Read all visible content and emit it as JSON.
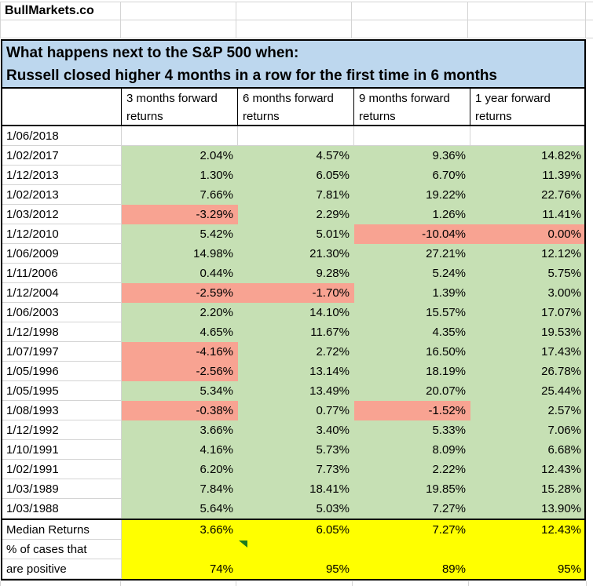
{
  "brand": "BullMarkets.co",
  "title": {
    "line1": "What happens next to the S&P 500 when:",
    "line2": "Russell closed higher 4 months in a row for the first time in 6 months"
  },
  "columns": [
    {
      "line1": "3 months forward",
      "line2": "returns"
    },
    {
      "line1": "6 months forward",
      "line2": "returns"
    },
    {
      "line1": "9 months forward",
      "line2": "returns"
    },
    {
      "line1": "1 year forward",
      "line2": "returns"
    }
  ],
  "rows": [
    {
      "date": "1/06/2018",
      "values": [
        "",
        "",
        "",
        ""
      ],
      "fills": [
        "w",
        "w",
        "w",
        "w"
      ]
    },
    {
      "date": "1/02/2017",
      "values": [
        "2.04%",
        "4.57%",
        "9.36%",
        "14.82%"
      ],
      "fills": [
        "g",
        "g",
        "g",
        "g"
      ]
    },
    {
      "date": "1/12/2013",
      "values": [
        "1.30%",
        "6.05%",
        "6.70%",
        "11.39%"
      ],
      "fills": [
        "g",
        "g",
        "g",
        "g"
      ]
    },
    {
      "date": "1/02/2013",
      "values": [
        "7.66%",
        "7.81%",
        "19.22%",
        "22.76%"
      ],
      "fills": [
        "g",
        "g",
        "g",
        "g"
      ]
    },
    {
      "date": "1/03/2012",
      "values": [
        "-3.29%",
        "2.29%",
        "1.26%",
        "11.41%"
      ],
      "fills": [
        "r",
        "g",
        "g",
        "g"
      ]
    },
    {
      "date": "1/12/2010",
      "values": [
        "5.42%",
        "5.01%",
        "-10.04%",
        "0.00%"
      ],
      "fills": [
        "g",
        "g",
        "r",
        "r"
      ]
    },
    {
      "date": "1/06/2009",
      "values": [
        "14.98%",
        "21.30%",
        "27.21%",
        "12.12%"
      ],
      "fills": [
        "g",
        "g",
        "g",
        "g"
      ]
    },
    {
      "date": "1/11/2006",
      "values": [
        "0.44%",
        "9.28%",
        "5.24%",
        "5.75%"
      ],
      "fills": [
        "g",
        "g",
        "g",
        "g"
      ]
    },
    {
      "date": "1/12/2004",
      "values": [
        "-2.59%",
        "-1.70%",
        "1.39%",
        "3.00%"
      ],
      "fills": [
        "r",
        "r",
        "g",
        "g"
      ]
    },
    {
      "date": "1/06/2003",
      "values": [
        "2.20%",
        "14.10%",
        "15.57%",
        "17.07%"
      ],
      "fills": [
        "g",
        "g",
        "g",
        "g"
      ]
    },
    {
      "date": "1/12/1998",
      "values": [
        "4.65%",
        "11.67%",
        "4.35%",
        "19.53%"
      ],
      "fills": [
        "g",
        "g",
        "g",
        "g"
      ]
    },
    {
      "date": "1/07/1997",
      "values": [
        "-4.16%",
        "2.72%",
        "16.50%",
        "17.43%"
      ],
      "fills": [
        "r",
        "g",
        "g",
        "g"
      ]
    },
    {
      "date": "1/05/1996",
      "values": [
        "-2.56%",
        "13.14%",
        "18.19%",
        "26.78%"
      ],
      "fills": [
        "r",
        "g",
        "g",
        "g"
      ]
    },
    {
      "date": "1/05/1995",
      "values": [
        "5.34%",
        "13.49%",
        "20.07%",
        "25.44%"
      ],
      "fills": [
        "g",
        "g",
        "g",
        "g"
      ]
    },
    {
      "date": "1/08/1993",
      "values": [
        "-0.38%",
        "0.77%",
        "-1.52%",
        "2.57%"
      ],
      "fills": [
        "r",
        "g",
        "r",
        "g"
      ]
    },
    {
      "date": "1/12/1992",
      "values": [
        "3.66%",
        "3.40%",
        "5.33%",
        "7.06%"
      ],
      "fills": [
        "g",
        "g",
        "g",
        "g"
      ]
    },
    {
      "date": "1/10/1991",
      "values": [
        "4.16%",
        "5.73%",
        "8.09%",
        "6.68%"
      ],
      "fills": [
        "g",
        "g",
        "g",
        "g"
      ]
    },
    {
      "date": "1/02/1991",
      "values": [
        "6.20%",
        "7.73%",
        "2.22%",
        "12.43%"
      ],
      "fills": [
        "g",
        "g",
        "g",
        "g"
      ]
    },
    {
      "date": "1/03/1989",
      "values": [
        "7.84%",
        "18.41%",
        "19.85%",
        "15.28%"
      ],
      "fills": [
        "g",
        "g",
        "g",
        "g"
      ]
    },
    {
      "date": "1/03/1988",
      "values": [
        "5.64%",
        "5.03%",
        "7.27%",
        "13.90%"
      ],
      "fills": [
        "g",
        "g",
        "g",
        "g"
      ]
    }
  ],
  "summary": {
    "median_label": "Median Returns",
    "median": [
      "3.66%",
      "6.05%",
      "7.27%",
      "12.43%"
    ],
    "pct_label_line1": "% of cases that",
    "pct_label_line2": "are positive",
    "pct": [
      "74%",
      "95%",
      "89%",
      "95%"
    ]
  },
  "icons": {
    "cell_flag": "green-triangle-indicator"
  },
  "colors": {
    "title_background": "#BDD7EE",
    "positive_fill": "#C6E0B4",
    "negative_fill": "#F8A392",
    "summary_fill": "#FFFF00",
    "indicator_green": "#1E7B1E"
  }
}
